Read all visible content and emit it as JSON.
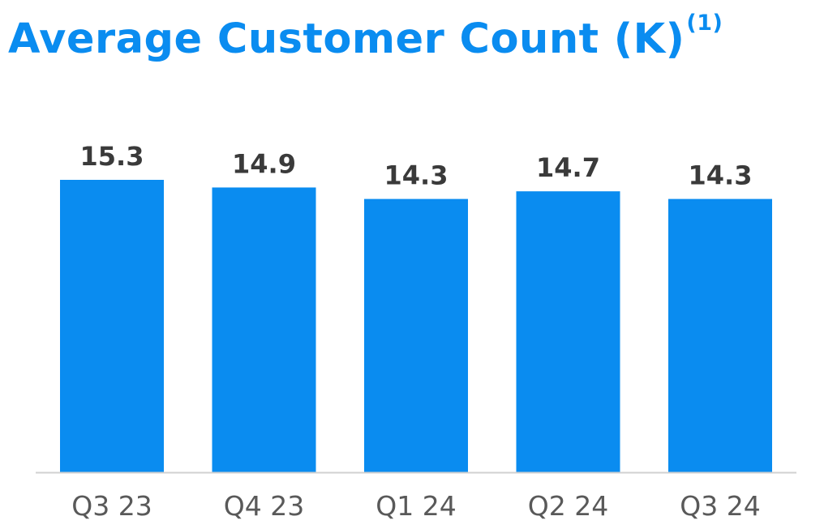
{
  "chart_data": {
    "type": "bar",
    "title": "Average Customer Count (K)",
    "title_footnote": "(1)",
    "categories": [
      "Q3 23",
      "Q4 23",
      "Q1 24",
      "Q2 24",
      "Q3 24"
    ],
    "values": [
      15.3,
      14.9,
      14.3,
      14.7,
      14.3
    ],
    "data_labels": [
      "15.3",
      "14.9",
      "14.3",
      "14.7",
      "14.3"
    ],
    "xlabel": "",
    "ylabel": "",
    "ylim": [
      0,
      15.3
    ],
    "grid": false,
    "legend": "none",
    "colors": {
      "bar": "#0A8CF0",
      "title": "#0A8CF0",
      "axis": "#D0D0D0",
      "value_label": "#3A3A3A",
      "category_label": "#595959"
    }
  }
}
